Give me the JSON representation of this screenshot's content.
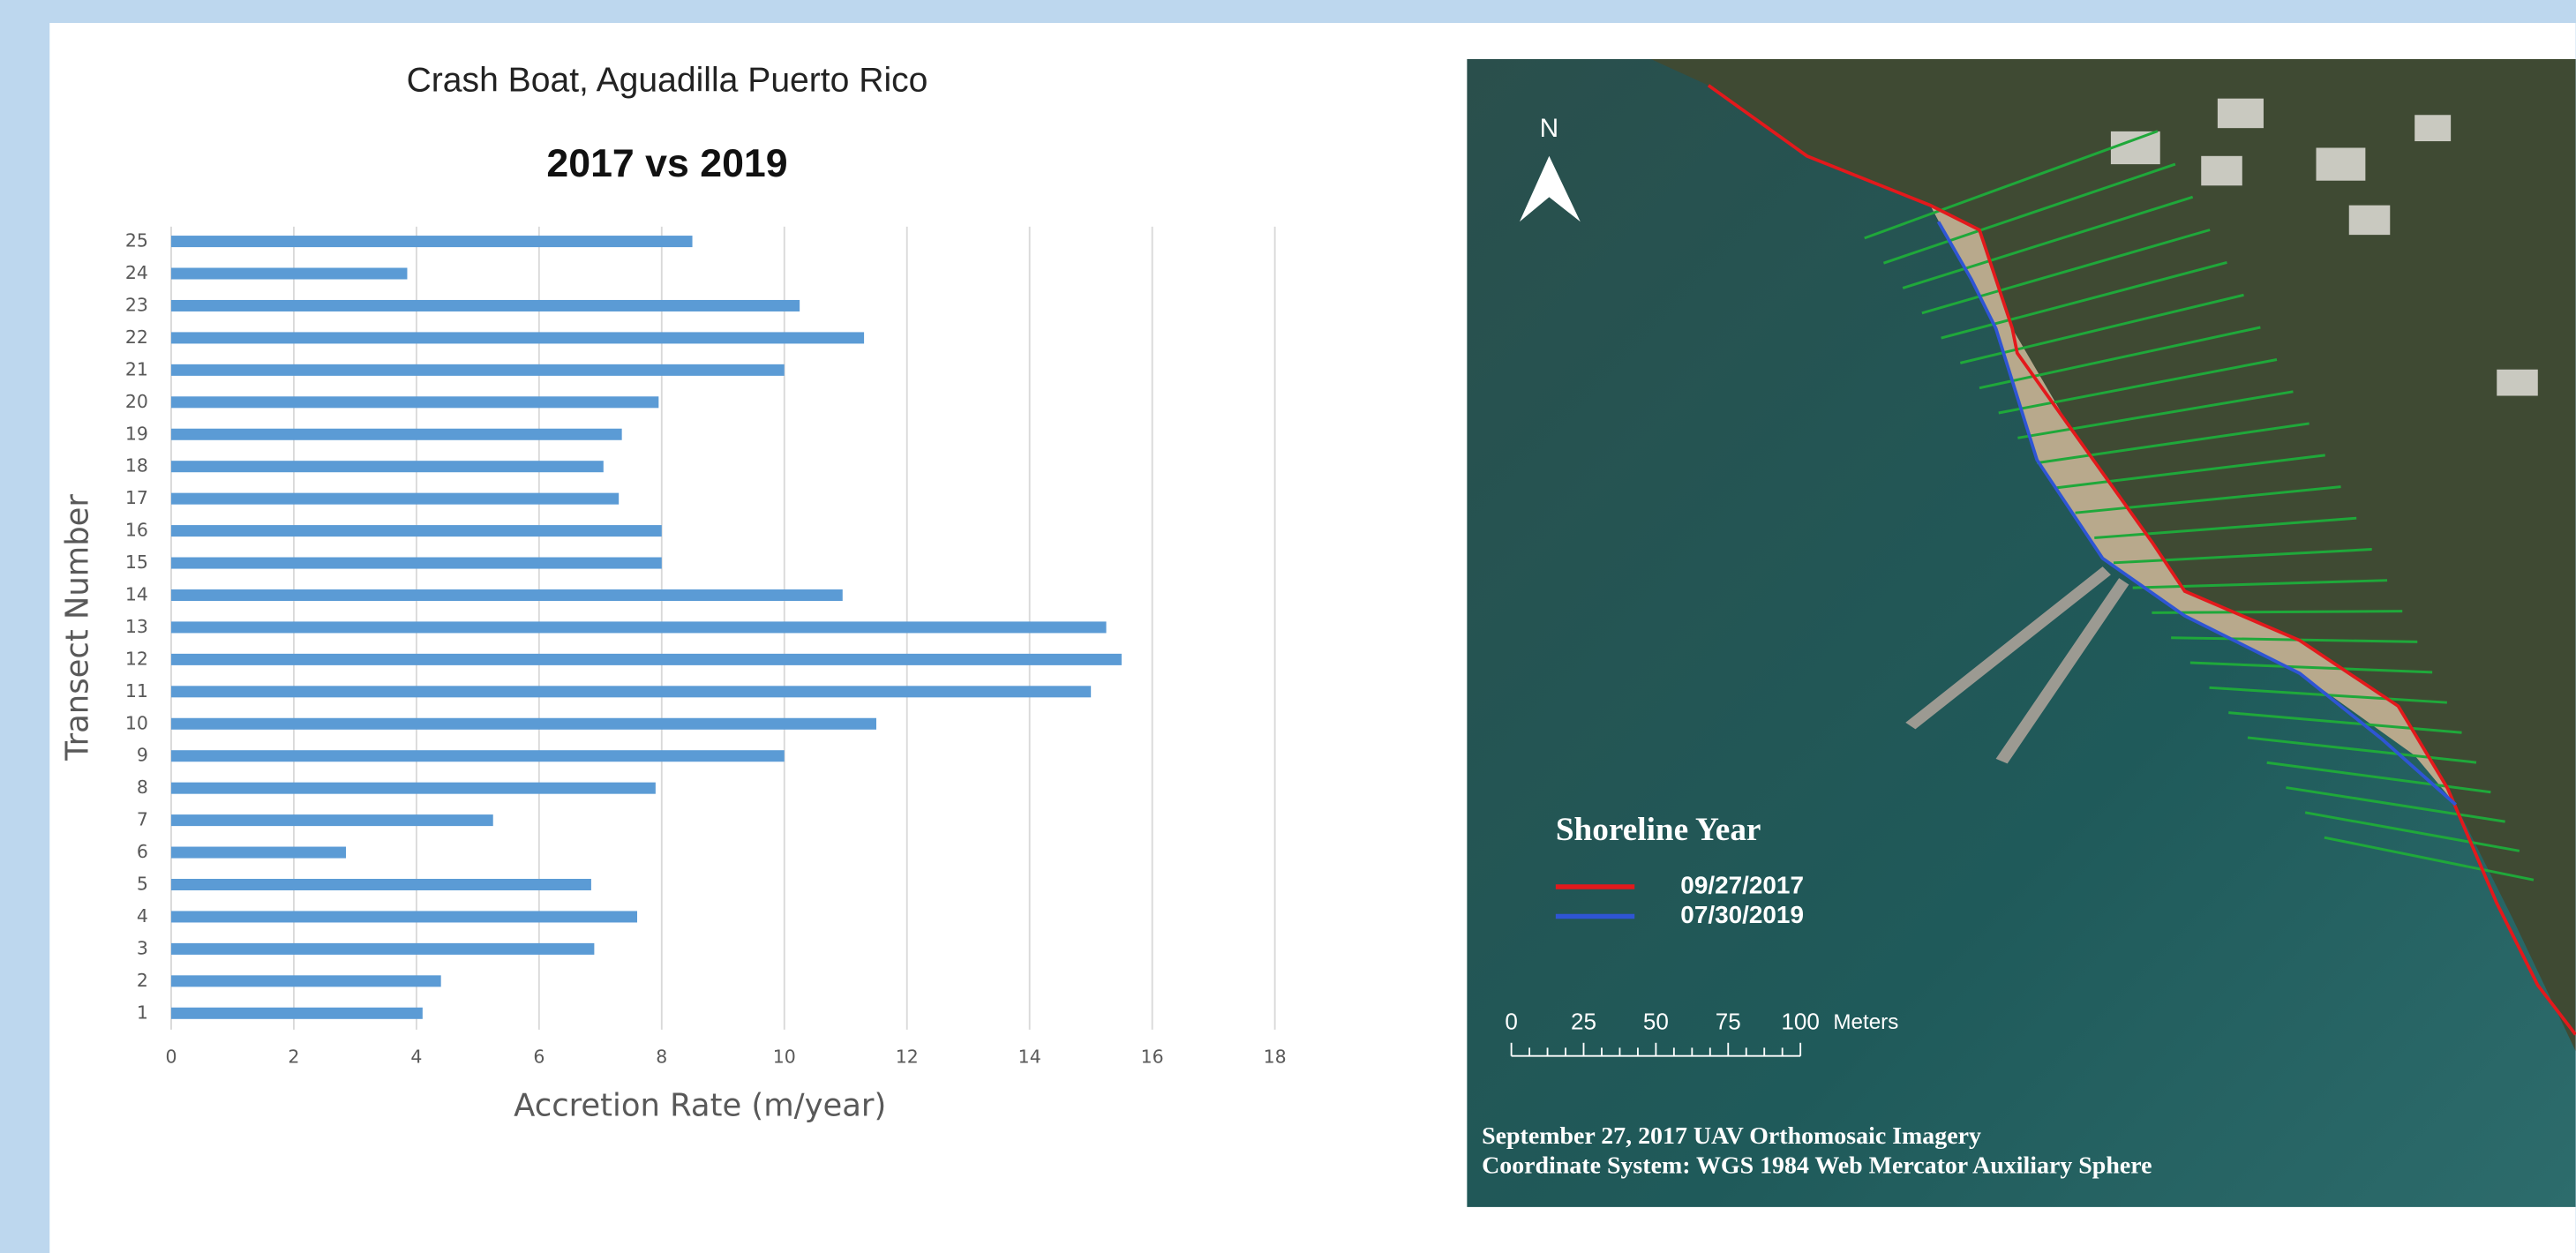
{
  "chart_data": {
    "type": "barh",
    "title": "Crash Boat, Aguadilla Puerto Rico",
    "subtitle": "2017 vs 2019",
    "x_label": "Accretion Rate (m/year)",
    "y_label": "Transect Number",
    "categories": [
      "1",
      "2",
      "3",
      "4",
      "5",
      "6",
      "7",
      "8",
      "9",
      "10",
      "11",
      "12",
      "13",
      "14",
      "15",
      "16",
      "17",
      "18",
      "19",
      "20",
      "21",
      "22",
      "23",
      "24",
      "25"
    ],
    "values": [
      4.1,
      4.4,
      6.9,
      7.6,
      6.85,
      2.85,
      5.25,
      7.9,
      10.0,
      11.5,
      15.0,
      15.5,
      15.25,
      10.95,
      8.0,
      8.0,
      7.3,
      7.05,
      7.35,
      7.95,
      10.0,
      11.3,
      10.25,
      3.85,
      8.5
    ],
    "color": "#5b9bd5",
    "xlim": [
      0,
      18
    ],
    "xticks": [
      0,
      2,
      4,
      6,
      8,
      10,
      12,
      14,
      16,
      18
    ],
    "grid": true
  },
  "map": {
    "north": "N",
    "legend_title": "Shoreline Year",
    "legend": [
      {
        "name": "09/27/2017",
        "color": "#e3191c"
      },
      {
        "name": "07/30/2019",
        "color": "#2f55d4"
      }
    ],
    "scale_labels": [
      "0",
      "25",
      "50",
      "75",
      "100"
    ],
    "scale_unit": "Meters",
    "footer": [
      "September 27, 2017 UAV Orthomosaic Imagery",
      "Coordinate System: WGS 1984 Web Mercator Auxiliary Sphere"
    ]
  }
}
